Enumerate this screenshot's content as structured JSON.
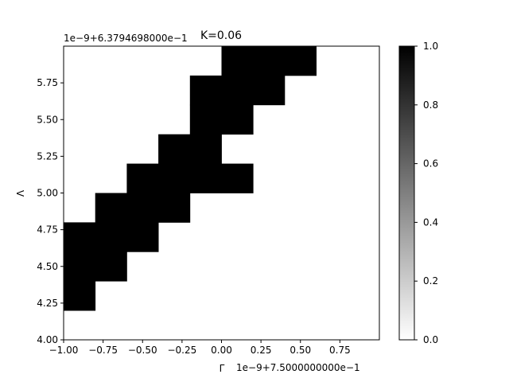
{
  "chart_data": {
    "type": "heatmap",
    "title": "K=0.06",
    "xlabel": "Γ",
    "ylabel": "Λ",
    "x_offset_label": "1e−9+7.5000000000e−1",
    "y_offset_label": "1e−9+6.3794698000e−1",
    "xlim": [
      -1.0,
      1.0
    ],
    "ylim": [
      4.0,
      6.0
    ],
    "x_ticks": [
      -1.0,
      -0.75,
      -0.5,
      -0.25,
      0.0,
      0.25,
      0.5,
      0.75
    ],
    "x_tick_labels": [
      "−1.00",
      "−0.75",
      "−0.50",
      "−0.25",
      "0.00",
      "0.25",
      "0.50",
      "0.75"
    ],
    "y_ticks": [
      4.0,
      4.25,
      4.5,
      4.75,
      5.0,
      5.25,
      5.5,
      5.75
    ],
    "y_tick_labels": [
      "4.00",
      "4.25",
      "4.50",
      "4.75",
      "5.00",
      "5.25",
      "5.50",
      "5.75"
    ],
    "x_edges": [
      -1.0,
      -0.8,
      -0.6,
      -0.4,
      -0.2,
      0.0,
      0.2,
      0.4,
      0.6,
      0.8,
      1.0
    ],
    "y_edges": [
      4.0,
      4.2,
      4.4,
      4.6,
      4.8,
      5.0,
      5.2,
      5.4,
      5.6,
      5.8,
      6.0
    ],
    "grid": [
      [
        0,
        0,
        0,
        0,
        0,
        0,
        0,
        0,
        0,
        0
      ],
      [
        1,
        0,
        0,
        0,
        0,
        0,
        0,
        0,
        0,
        0
      ],
      [
        1,
        1,
        0,
        0,
        0,
        0,
        0,
        0,
        0,
        0
      ],
      [
        1,
        1,
        1,
        0,
        0,
        0,
        0,
        0,
        0,
        0
      ],
      [
        0,
        1,
        1,
        1,
        0,
        0,
        0,
        0,
        0,
        0
      ],
      [
        0,
        0,
        1,
        1,
        1,
        1,
        0,
        0,
        0,
        0
      ],
      [
        0,
        0,
        0,
        1,
        1,
        0,
        0,
        0,
        0,
        0
      ],
      [
        0,
        0,
        0,
        0,
        1,
        1,
        0,
        0,
        0,
        0
      ],
      [
        0,
        0,
        0,
        0,
        1,
        1,
        1,
        0,
        0,
        0
      ],
      [
        0,
        0,
        0,
        0,
        0,
        1,
        1,
        1,
        0,
        0
      ]
    ],
    "colorbar": {
      "range": [
        0.0,
        1.0
      ],
      "ticks": [
        0.0,
        0.2,
        0.4,
        0.6,
        0.8,
        1.0
      ],
      "tick_labels": [
        "0.0",
        "0.2",
        "0.4",
        "0.6",
        "0.8",
        "1.0"
      ],
      "colormap": "gray_r",
      "low_color": "#ffffff",
      "high_color": "#000000"
    },
    "grid_lines": false,
    "legend": "none"
  }
}
